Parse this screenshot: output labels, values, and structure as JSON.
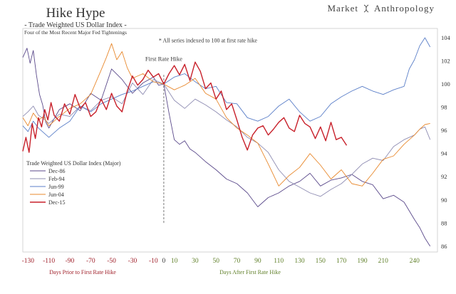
{
  "header": {
    "title": "Hike Hype",
    "subtitle": "- Trade Weighted US Dollar Index -",
    "subsubtitle": "Four of the Most Recent Major Fed Tightenings",
    "brand_left": "Market",
    "brand_right": "Anthropology"
  },
  "annotations": {
    "indexed_note": "* All series indexed to 100 at first rate hike",
    "first_hike_label": "First Rate Hike"
  },
  "chart_data": {
    "type": "line",
    "title": "Hike Hype",
    "xlabel_left": "Days Prior to First Rate Hike",
    "xlabel_right": "Days After First Rate Hike",
    "xlim": [
      -135,
      262
    ],
    "ylim": [
      85.5,
      104.8
    ],
    "x_ticks": [
      -130,
      -110,
      -90,
      -70,
      -50,
      -30,
      -10,
      0,
      10,
      30,
      50,
      70,
      90,
      110,
      130,
      150,
      170,
      190,
      210,
      240
    ],
    "x_tick_labels": [
      "-130",
      "-110",
      "-90",
      "-70",
      "-50",
      "-30",
      "-10",
      "0",
      "10",
      "30",
      "50",
      "70",
      "90",
      "110",
      "130",
      "150",
      "170",
      "190",
      "210",
      "240"
    ],
    "y_ticks": [
      86,
      88,
      90,
      92,
      94,
      96,
      98,
      100,
      102,
      104
    ],
    "grid": false,
    "legend_title": "Trade Weighted US Dollar Index (Major)",
    "legend_position": "left",
    "series": [
      {
        "name": "Dec-86",
        "color": "#5b4a8b",
        "x": [
          -135,
          -131,
          -128,
          -125,
          -122,
          -119,
          -116,
          -113,
          -110,
          -100,
          -90,
          -80,
          -70,
          -60,
          -50,
          -40,
          -30,
          -20,
          -10,
          -5,
          0,
          5,
          10,
          15,
          20,
          25,
          30,
          40,
          50,
          60,
          70,
          80,
          90,
          100,
          110,
          120,
          130,
          140,
          150,
          160,
          170,
          180,
          190,
          200,
          210,
          220,
          230,
          240,
          245,
          250,
          255
        ],
        "y": [
          102.3,
          103.1,
          101.8,
          102.9,
          100.8,
          99.1,
          98.2,
          96.7,
          96.2,
          97.8,
          98.3,
          97.7,
          99.2,
          98.6,
          101.3,
          100.4,
          99.2,
          100.1,
          100.6,
          99.9,
          100,
          97.5,
          95.2,
          94.8,
          95.1,
          94.4,
          94.1,
          93.3,
          92.6,
          91.8,
          91.4,
          90.6,
          89.4,
          90.2,
          90.6,
          91.2,
          91.6,
          92.3,
          91.2,
          91.7,
          91.9,
          92.2,
          91.6,
          91.3,
          90.1,
          90.4,
          89.8,
          88.3,
          87.6,
          86.7,
          86.0
        ]
      },
      {
        "name": "Feb-94",
        "color": "#8e8cb2",
        "x": [
          -135,
          -130,
          -125,
          -120,
          -115,
          -110,
          -100,
          -90,
          -80,
          -70,
          -60,
          -50,
          -40,
          -30,
          -20,
          -10,
          0,
          10,
          20,
          30,
          40,
          50,
          60,
          70,
          80,
          90,
          100,
          110,
          120,
          130,
          140,
          150,
          160,
          170,
          180,
          190,
          200,
          210,
          220,
          230,
          240,
          245,
          250,
          255
        ],
        "y": [
          97.2,
          97.6,
          98.1,
          97.3,
          97.0,
          96.6,
          97.4,
          97.2,
          98.1,
          97.7,
          98.6,
          98.9,
          98.3,
          100.1,
          99.1,
          100.4,
          100,
          98.6,
          97.9,
          98.7,
          98.2,
          97.6,
          96.9,
          96.3,
          95.4,
          94.9,
          94.1,
          92.6,
          91.6,
          91.1,
          90.6,
          90.3,
          90.9,
          91.4,
          92.2,
          93.1,
          93.6,
          93.4,
          94.6,
          95.2,
          95.6,
          96.1,
          96.3,
          95.2
        ]
      },
      {
        "name": "Jun-99",
        "color": "#5b7fc8",
        "x": [
          -135,
          -130,
          -125,
          -120,
          -110,
          -100,
          -90,
          -80,
          -70,
          -60,
          -50,
          -40,
          -30,
          -20,
          -10,
          0,
          10,
          20,
          30,
          40,
          50,
          60,
          70,
          80,
          90,
          100,
          110,
          120,
          130,
          140,
          150,
          160,
          170,
          180,
          190,
          200,
          210,
          220,
          230,
          235,
          240,
          245,
          250,
          255
        ],
        "y": [
          96.4,
          95.9,
          96.8,
          96.2,
          95.4,
          96.2,
          96.8,
          98.1,
          97.6,
          98.3,
          98.7,
          99.1,
          99.4,
          99.8,
          100.2,
          100,
          100.6,
          100.9,
          100.2,
          99.6,
          99.8,
          98.4,
          98.3,
          97.1,
          96.8,
          97.2,
          98.1,
          98.7,
          97.6,
          96.8,
          97.2,
          98.3,
          98.9,
          99.4,
          99.8,
          99.4,
          99.1,
          99.5,
          99.8,
          101.3,
          102.1,
          103.3,
          104.0,
          103.2
        ]
      },
      {
        "name": "Jun-04",
        "color": "#e8892e",
        "x": [
          -135,
          -130,
          -125,
          -120,
          -115,
          -110,
          -100,
          -90,
          -80,
          -70,
          -60,
          -55,
          -50,
          -45,
          -40,
          -35,
          -30,
          -20,
          -10,
          0,
          10,
          20,
          30,
          40,
          50,
          60,
          70,
          80,
          90,
          100,
          110,
          120,
          130,
          140,
          150,
          160,
          170,
          180,
          190,
          200,
          210,
          220,
          230,
          240,
          245,
          250,
          255
        ],
        "y": [
          97.1,
          96.4,
          97.5,
          96.9,
          97.2,
          96.4,
          97.2,
          97.9,
          98.3,
          99.1,
          101.2,
          102.3,
          103.5,
          102.1,
          102.8,
          101.4,
          100.5,
          100.9,
          100.2,
          100,
          99.5,
          99.9,
          100.5,
          99.2,
          98.7,
          97.1,
          96.2,
          95.6,
          94.9,
          93.1,
          91.2,
          92.1,
          92.8,
          94.0,
          93.0,
          91.8,
          92.6,
          91.4,
          91.2,
          92.3,
          93.5,
          93.8,
          94.8,
          95.6,
          96.1,
          96.5,
          96.6
        ]
      },
      {
        "name": "Dec-15",
        "color": "#c8202a",
        "x": [
          -135,
          -132,
          -129,
          -126,
          -123,
          -120,
          -117,
          -114,
          -111,
          -108,
          -105,
          -100,
          -95,
          -90,
          -85,
          -80,
          -75,
          -70,
          -65,
          -60,
          -55,
          -50,
          -45,
          -40,
          -35,
          -30,
          -25,
          -20,
          -15,
          -10,
          -5,
          0,
          5,
          10,
          15,
          20,
          25,
          30,
          35,
          40,
          45,
          50,
          55,
          60,
          65,
          70,
          75,
          80,
          85,
          90,
          95,
          100,
          105,
          110,
          115,
          120,
          125,
          130,
          135,
          140,
          145,
          150,
          155,
          160,
          165,
          170,
          175
        ],
        "y": [
          94.2,
          95.4,
          94.1,
          96.6,
          95.3,
          97.1,
          96.3,
          97.8,
          96.9,
          98.4,
          97.3,
          96.8,
          98.3,
          97.4,
          99.1,
          97.9,
          98.4,
          97.2,
          97.6,
          98.7,
          97.8,
          99.2,
          98.1,
          97.6,
          99.4,
          100.7,
          99.9,
          100.4,
          101.2,
          100.6,
          100.9,
          100,
          100.9,
          101.6,
          100.8,
          101.7,
          100.3,
          101.9,
          101.1,
          99.6,
          100.1,
          98.7,
          99.4,
          97.8,
          98.3,
          96.9,
          95.4,
          94.3,
          95.6,
          96.2,
          96.4,
          95.6,
          96.1,
          96.7,
          97.1,
          96.2,
          95.9,
          97.3,
          96.6,
          96.3,
          95.3,
          96.3,
          95.1,
          96.7,
          95.2,
          95.4,
          94.7
        ]
      }
    ]
  }
}
